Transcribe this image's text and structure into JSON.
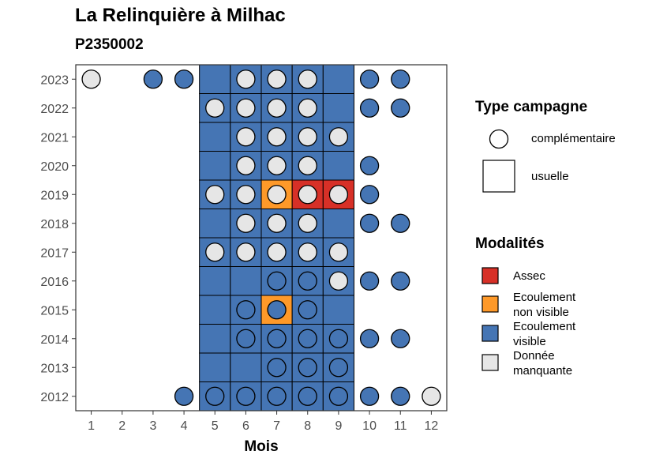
{
  "header": {
    "title": "La Relinquière à Milhac",
    "subtitle": "P2350002"
  },
  "colors": {
    "Assec": "#d73027",
    "Ecoulement non visible": "#fe9929",
    "Ecoulement visible": "#4575b4",
    "Donnée manquante": "#e6e6e6"
  },
  "legend": {
    "type_title": "Type campagne",
    "type_items": [
      {
        "key": "complementaire",
        "label": "complémentaire",
        "shape": "circle"
      },
      {
        "key": "usuelle",
        "label": "usuelle",
        "shape": "square"
      }
    ],
    "mod_title": "Modalités",
    "mod_items": [
      {
        "key": "Assec",
        "lines": [
          "Assec"
        ]
      },
      {
        "key": "Ecoulement non visible",
        "lines": [
          "Ecoulement",
          "non visible"
        ]
      },
      {
        "key": "Ecoulement visible",
        "lines": [
          "Ecoulement",
          "visible"
        ]
      },
      {
        "key": "Donnée manquante",
        "lines": [
          "Donnée",
          "manquante"
        ]
      }
    ]
  },
  "chart_data": {
    "type": "heatmap",
    "title": "La Relinquière à Milhac",
    "subtitle": "P2350002",
    "xlabel": "Mois",
    "ylabel": "",
    "x_ticks": [
      1,
      2,
      3,
      4,
      5,
      6,
      7,
      8,
      9,
      10,
      11,
      12
    ],
    "y_ticks": [
      2012,
      2013,
      2014,
      2015,
      2016,
      2017,
      2018,
      2019,
      2020,
      2021,
      2022,
      2023
    ],
    "xlim": [
      0.5,
      12.5
    ],
    "ylim": [
      2011.5,
      2023.5
    ],
    "usuelle_squares": [
      {
        "year": 2023,
        "months": [
          5,
          6,
          7,
          8,
          9
        ],
        "values": [
          "V",
          "V",
          "V",
          "V",
          "V"
        ]
      },
      {
        "year": 2022,
        "months": [
          5,
          6,
          7,
          8,
          9
        ],
        "values": [
          "V",
          "V",
          "V",
          "V",
          "V"
        ]
      },
      {
        "year": 2021,
        "months": [
          5,
          6,
          7,
          8,
          9
        ],
        "values": [
          "V",
          "V",
          "V",
          "V",
          "V"
        ]
      },
      {
        "year": 2020,
        "months": [
          5,
          6,
          7,
          8,
          9
        ],
        "values": [
          "V",
          "V",
          "V",
          "V",
          "V"
        ]
      },
      {
        "year": 2019,
        "months": [
          5,
          6,
          7,
          8,
          9
        ],
        "values": [
          "V",
          "V",
          "N",
          "A",
          "A"
        ]
      },
      {
        "year": 2018,
        "months": [
          5,
          6,
          7,
          8,
          9
        ],
        "values": [
          "V",
          "V",
          "V",
          "V",
          "V"
        ]
      },
      {
        "year": 2017,
        "months": [
          5,
          6,
          7,
          8,
          9
        ],
        "values": [
          "V",
          "V",
          "V",
          "V",
          "V"
        ]
      },
      {
        "year": 2016,
        "months": [
          5,
          6,
          7,
          8,
          9
        ],
        "values": [
          "V",
          "V",
          "V",
          "V",
          "V"
        ]
      },
      {
        "year": 2015,
        "months": [
          5,
          6,
          7,
          8,
          9
        ],
        "values": [
          "V",
          "V",
          "N",
          "V",
          "V"
        ]
      },
      {
        "year": 2014,
        "months": [
          5,
          6,
          7,
          8,
          9
        ],
        "values": [
          "V",
          "V",
          "V",
          "V",
          "V"
        ]
      },
      {
        "year": 2013,
        "months": [
          5,
          6,
          7,
          8,
          9
        ],
        "values": [
          "V",
          "V",
          "V",
          "V",
          "V"
        ]
      },
      {
        "year": 2012,
        "months": [
          5,
          6,
          7,
          8,
          9
        ],
        "values": [
          "V",
          "V",
          "V",
          "V",
          "V"
        ]
      }
    ],
    "complementaire_points": [
      {
        "year": 2023,
        "months": [
          1,
          3,
          4,
          6,
          7,
          8,
          10,
          11
        ],
        "values": [
          "M",
          "V",
          "V",
          "M",
          "M",
          "M",
          "V",
          "V"
        ]
      },
      {
        "year": 2022,
        "months": [
          5,
          6,
          7,
          8,
          10,
          11
        ],
        "values": [
          "M",
          "M",
          "M",
          "M",
          "V",
          "V"
        ]
      },
      {
        "year": 2021,
        "months": [
          6,
          7,
          8,
          9
        ],
        "values": [
          "M",
          "M",
          "M",
          "M"
        ]
      },
      {
        "year": 2020,
        "months": [
          6,
          7,
          8,
          10
        ],
        "values": [
          "M",
          "M",
          "M",
          "V"
        ]
      },
      {
        "year": 2019,
        "months": [
          5,
          6,
          7,
          8,
          9,
          10
        ],
        "values": [
          "M",
          "M",
          "M",
          "M",
          "M",
          "V"
        ]
      },
      {
        "year": 2018,
        "months": [
          6,
          7,
          8,
          10,
          11
        ],
        "values": [
          "M",
          "M",
          "M",
          "V",
          "V"
        ]
      },
      {
        "year": 2017,
        "months": [
          5,
          6,
          7,
          8,
          9
        ],
        "values": [
          "M",
          "M",
          "M",
          "M",
          "M"
        ]
      },
      {
        "year": 2016,
        "months": [
          7,
          8,
          9,
          10,
          11
        ],
        "values": [
          "V",
          "V",
          "M",
          "V",
          "V"
        ]
      },
      {
        "year": 2015,
        "months": [
          6,
          7,
          8
        ],
        "values": [
          "V",
          "V",
          "V"
        ]
      },
      {
        "year": 2014,
        "months": [
          6,
          7,
          8,
          9,
          10,
          11
        ],
        "values": [
          "V",
          "V",
          "V",
          "V",
          "V",
          "V"
        ]
      },
      {
        "year": 2013,
        "months": [
          7,
          8,
          9
        ],
        "values": [
          "V",
          "V",
          "V"
        ]
      },
      {
        "year": 2012,
        "months": [
          4,
          5,
          6,
          7,
          8,
          9,
          10,
          11,
          12
        ],
        "values": [
          "V",
          "V",
          "V",
          "V",
          "V",
          "V",
          "V",
          "V",
          "M"
        ]
      }
    ],
    "value_codes": {
      "A": "Assec",
      "N": "Ecoulement non visible",
      "V": "Ecoulement visible",
      "M": "Donnée manquante"
    }
  }
}
